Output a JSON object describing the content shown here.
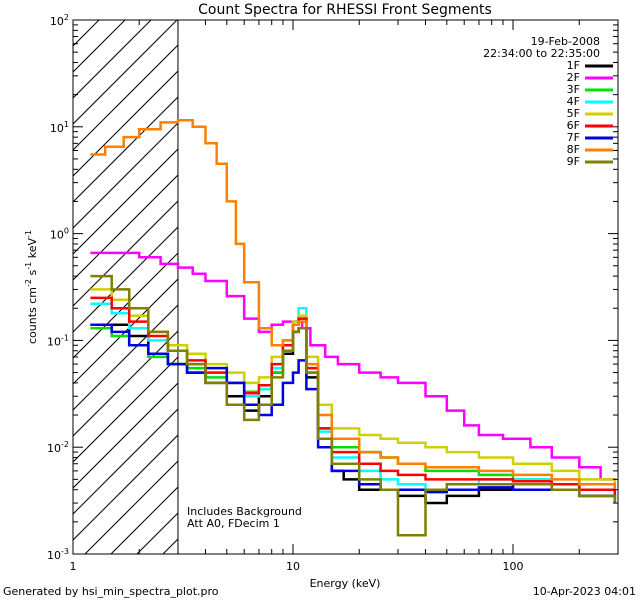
{
  "chart_data": {
    "type": "line",
    "title": "Count Spectra for RHESSI Front Segments",
    "xlabel": "Energy (keV)",
    "ylabel_base": "counts cm",
    "ylabel_parts": {
      "sup_cm": "-2",
      "s": " s",
      "sup_s": "-1",
      "kev": " keV",
      "sup_kev": "-1"
    },
    "xscale": "log",
    "yscale": "log",
    "xlim": [
      1,
      300
    ],
    "ylim": [
      0.001,
      100
    ],
    "x_ticks": [
      {
        "value": 1,
        "label": "1"
      },
      {
        "value": 10,
        "label": "10"
      },
      {
        "value": 100,
        "label": "100"
      }
    ],
    "y_ticks": [
      {
        "value": 0.001,
        "base": "10",
        "exp": "-3"
      },
      {
        "value": 0.01,
        "base": "10",
        "exp": "-2"
      },
      {
        "value": 0.1,
        "base": "10",
        "exp": "-1"
      },
      {
        "value": 1,
        "base": "10",
        "exp": "0"
      },
      {
        "value": 10,
        "base": "10",
        "exp": "1"
      },
      {
        "value": 100,
        "base": "10",
        "exp": "2"
      }
    ],
    "date": "19-Feb-2008",
    "time_range": "22:34:00 to 22:35:00",
    "hatched_region": {
      "x0": 1,
      "x1": 3
    },
    "annotations": [
      "Includes Background",
      "Att A0, FDecim 1"
    ],
    "footer_left": "Generated by hsi_min_spectra_plot.pro",
    "footer_right": "10-Apr-2023 04:01",
    "series": [
      {
        "name": "1F",
        "color": "#000000",
        "points": [
          [
            1.2,
            0.14
          ],
          [
            1.5,
            0.14
          ],
          [
            1.8,
            0.11
          ],
          [
            2.2,
            0.075
          ],
          [
            2.7,
            0.06
          ],
          [
            3.3,
            0.05
          ],
          [
            4,
            0.04
          ],
          [
            5,
            0.03
          ],
          [
            6,
            0.022
          ],
          [
            7,
            0.03
          ],
          [
            8,
            0.05
          ],
          [
            9,
            0.075
          ],
          [
            10,
            0.12
          ],
          [
            10.6,
            0.13
          ],
          [
            11.5,
            0.045
          ],
          [
            13,
            0.012
          ],
          [
            15,
            0.006
          ],
          [
            17,
            0.005
          ],
          [
            20,
            0.004
          ],
          [
            25,
            0.004
          ],
          [
            30,
            0.0035
          ],
          [
            40,
            0.003
          ],
          [
            50,
            0.0035
          ],
          [
            70,
            0.004
          ],
          [
            100,
            0.0045
          ],
          [
            150,
            0.004
          ],
          [
            200,
            0.0035
          ],
          [
            290,
            0.003
          ]
        ]
      },
      {
        "name": "2F",
        "color": "#ff00ff",
        "points": [
          [
            1.2,
            0.66
          ],
          [
            1.5,
            0.66
          ],
          [
            2,
            0.6
          ],
          [
            2.5,
            0.52
          ],
          [
            3,
            0.48
          ],
          [
            3.5,
            0.42
          ],
          [
            4,
            0.36
          ],
          [
            5,
            0.26
          ],
          [
            6,
            0.16
          ],
          [
            7,
            0.12
          ],
          [
            8,
            0.14
          ],
          [
            9,
            0.15
          ],
          [
            10,
            0.15
          ],
          [
            11,
            0.13
          ],
          [
            12,
            0.09
          ],
          [
            14,
            0.07
          ],
          [
            16,
            0.06
          ],
          [
            20,
            0.05
          ],
          [
            25,
            0.045
          ],
          [
            30,
            0.04
          ],
          [
            40,
            0.03
          ],
          [
            50,
            0.022
          ],
          [
            60,
            0.016
          ],
          [
            70,
            0.013
          ],
          [
            90,
            0.012
          ],
          [
            120,
            0.01
          ],
          [
            150,
            0.008
          ],
          [
            200,
            0.0065
          ],
          [
            250,
            0.005
          ],
          [
            290,
            0.004
          ]
        ]
      },
      {
        "name": "3F",
        "color": "#00e000",
        "points": [
          [
            1.2,
            0.13
          ],
          [
            1.5,
            0.11
          ],
          [
            1.8,
            0.09
          ],
          [
            2.2,
            0.07
          ],
          [
            2.7,
            0.06
          ],
          [
            3.3,
            0.055
          ],
          [
            4,
            0.045
          ],
          [
            5,
            0.04
          ],
          [
            6,
            0.033
          ],
          [
            7,
            0.035
          ],
          [
            8,
            0.05
          ],
          [
            9,
            0.08
          ],
          [
            10,
            0.14
          ],
          [
            10.6,
            0.16
          ],
          [
            11.5,
            0.05
          ],
          [
            13,
            0.015
          ],
          [
            15,
            0.01
          ],
          [
            20,
            0.009
          ],
          [
            25,
            0.008
          ],
          [
            30,
            0.007
          ],
          [
            40,
            0.006
          ],
          [
            50,
            0.006
          ],
          [
            70,
            0.0055
          ],
          [
            100,
            0.005
          ],
          [
            150,
            0.0045
          ],
          [
            200,
            0.004
          ],
          [
            290,
            0.0035
          ]
        ]
      },
      {
        "name": "4F",
        "color": "#00ffff",
        "points": [
          [
            1.2,
            0.22
          ],
          [
            1.5,
            0.18
          ],
          [
            1.8,
            0.13
          ],
          [
            2.2,
            0.1
          ],
          [
            2.7,
            0.08
          ],
          [
            3.3,
            0.06
          ],
          [
            4,
            0.05
          ],
          [
            5,
            0.04
          ],
          [
            6,
            0.03
          ],
          [
            7,
            0.035
          ],
          [
            8,
            0.055
          ],
          [
            9,
            0.09
          ],
          [
            10,
            0.15
          ],
          [
            10.6,
            0.2
          ],
          [
            11.5,
            0.055
          ],
          [
            13,
            0.014
          ],
          [
            15,
            0.008
          ],
          [
            20,
            0.006
          ],
          [
            25,
            0.005
          ],
          [
            30,
            0.0045
          ],
          [
            40,
            0.004
          ],
          [
            50,
            0.0045
          ],
          [
            70,
            0.005
          ],
          [
            100,
            0.005
          ],
          [
            150,
            0.0045
          ],
          [
            200,
            0.004
          ],
          [
            290,
            0.0035
          ]
        ]
      },
      {
        "name": "5F",
        "color": "#d0d000",
        "points": [
          [
            1.2,
            0.3
          ],
          [
            1.5,
            0.24
          ],
          [
            1.8,
            0.17
          ],
          [
            2.2,
            0.12
          ],
          [
            2.7,
            0.09
          ],
          [
            3.3,
            0.075
          ],
          [
            4,
            0.06
          ],
          [
            5,
            0.05
          ],
          [
            6,
            0.04
          ],
          [
            7,
            0.045
          ],
          [
            8,
            0.07
          ],
          [
            9,
            0.1
          ],
          [
            10,
            0.15
          ],
          [
            10.6,
            0.17
          ],
          [
            11.5,
            0.07
          ],
          [
            13,
            0.025
          ],
          [
            15,
            0.015
          ],
          [
            20,
            0.013
          ],
          [
            25,
            0.012
          ],
          [
            30,
            0.011
          ],
          [
            40,
            0.01
          ],
          [
            50,
            0.009
          ],
          [
            70,
            0.008
          ],
          [
            100,
            0.007
          ],
          [
            150,
            0.006
          ],
          [
            200,
            0.005
          ],
          [
            290,
            0.004
          ]
        ]
      },
      {
        "name": "6F",
        "color": "#ff0000",
        "points": [
          [
            1.2,
            0.25
          ],
          [
            1.5,
            0.2
          ],
          [
            1.8,
            0.15
          ],
          [
            2.2,
            0.11
          ],
          [
            2.7,
            0.08
          ],
          [
            3.3,
            0.065
          ],
          [
            4,
            0.05
          ],
          [
            5,
            0.04
          ],
          [
            6,
            0.032
          ],
          [
            7,
            0.038
          ],
          [
            8,
            0.06
          ],
          [
            9,
            0.09
          ],
          [
            10,
            0.14
          ],
          [
            10.6,
            0.16
          ],
          [
            11.5,
            0.055
          ],
          [
            13,
            0.015
          ],
          [
            15,
            0.009
          ],
          [
            20,
            0.007
          ],
          [
            25,
            0.006
          ],
          [
            30,
            0.0055
          ],
          [
            40,
            0.005
          ],
          [
            50,
            0.005
          ],
          [
            70,
            0.005
          ],
          [
            100,
            0.0048
          ],
          [
            150,
            0.0045
          ],
          [
            200,
            0.004
          ],
          [
            290,
            0.0035
          ]
        ]
      },
      {
        "name": "7F",
        "color": "#0000e0",
        "points": [
          [
            1.2,
            0.14
          ],
          [
            1.5,
            0.12
          ],
          [
            1.8,
            0.09
          ],
          [
            2.2,
            0.075
          ],
          [
            2.7,
            0.06
          ],
          [
            3.3,
            0.05
          ],
          [
            4,
            0.055
          ],
          [
            5,
            0.04
          ],
          [
            6,
            0.025
          ],
          [
            7,
            0.02
          ],
          [
            8,
            0.025
          ],
          [
            9,
            0.04
          ],
          [
            10,
            0.05
          ],
          [
            10.6,
            0.065
          ],
          [
            11.5,
            0.035
          ],
          [
            13,
            0.01
          ],
          [
            15,
            0.006
          ],
          [
            20,
            0.0045
          ],
          [
            25,
            0.004
          ],
          [
            30,
            0.004
          ],
          [
            40,
            0.0038
          ],
          [
            50,
            0.004
          ],
          [
            70,
            0.0042
          ],
          [
            100,
            0.004
          ],
          [
            150,
            0.004
          ],
          [
            200,
            0.0035
          ],
          [
            290,
            0.003
          ]
        ]
      },
      {
        "name": "8F",
        "color": "#ff8000",
        "points": [
          [
            1.2,
            5.5
          ],
          [
            1.4,
            6.5
          ],
          [
            1.7,
            8
          ],
          [
            2,
            9.5
          ],
          [
            2.5,
            11
          ],
          [
            3,
            11.5
          ],
          [
            3.5,
            10
          ],
          [
            4,
            7
          ],
          [
            4.5,
            4.5
          ],
          [
            5,
            2
          ],
          [
            5.5,
            0.8
          ],
          [
            6,
            0.35
          ],
          [
            7,
            0.13
          ],
          [
            8,
            0.09
          ],
          [
            9,
            0.1
          ],
          [
            10,
            0.14
          ],
          [
            10.6,
            0.15
          ],
          [
            11.5,
            0.06
          ],
          [
            13,
            0.02
          ],
          [
            15,
            0.012
          ],
          [
            20,
            0.009
          ],
          [
            25,
            0.008
          ],
          [
            30,
            0.007
          ],
          [
            40,
            0.0065
          ],
          [
            50,
            0.0065
          ],
          [
            70,
            0.006
          ],
          [
            100,
            0.0055
          ],
          [
            150,
            0.005
          ],
          [
            200,
            0.0045
          ],
          [
            290,
            0.004
          ]
        ]
      },
      {
        "name": "9F",
        "color": "#808000",
        "points": [
          [
            1.2,
            0.4
          ],
          [
            1.5,
            0.3
          ],
          [
            1.8,
            0.2
          ],
          [
            2.2,
            0.12
          ],
          [
            2.7,
            0.08
          ],
          [
            3.3,
            0.06
          ],
          [
            4,
            0.04
          ],
          [
            5,
            0.025
          ],
          [
            6,
            0.018
          ],
          [
            7,
            0.025
          ],
          [
            8,
            0.045
          ],
          [
            9,
            0.08
          ],
          [
            10,
            0.12
          ],
          [
            10.6,
            0.13
          ],
          [
            11.5,
            0.05
          ],
          [
            13,
            0.012
          ],
          [
            15,
            0.007
          ],
          [
            20,
            0.005
          ],
          [
            25,
            0.004
          ],
          [
            30,
            0.0015
          ],
          [
            40,
            0.004
          ],
          [
            50,
            0.0045
          ],
          [
            70,
            0.0045
          ],
          [
            100,
            0.0045
          ],
          [
            150,
            0.004
          ],
          [
            200,
            0.0035
          ],
          [
            290,
            0.003
          ]
        ]
      }
    ]
  }
}
